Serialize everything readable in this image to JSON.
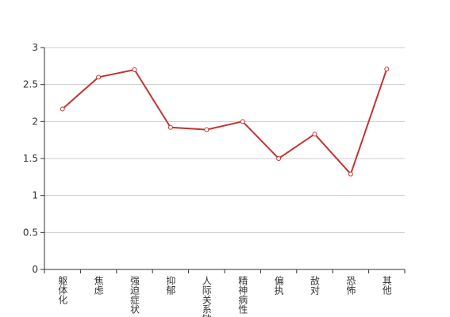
{
  "chart_data": {
    "type": "line",
    "categories": [
      "躯体化",
      "焦虑",
      "强迫症状",
      "抑郁",
      "人际关系敏感",
      "精神病性",
      "偏执",
      "敌对",
      "恐怖",
      "其他"
    ],
    "series": [
      {
        "color": "#c23531",
        "values": [
          2.17,
          2.6,
          2.7,
          1.92,
          1.89,
          2.0,
          1.5,
          1.83,
          1.29,
          2.71
        ]
      }
    ],
    "ylim": [
      0,
      3
    ],
    "yticks": [
      0,
      0.5,
      1,
      1.5,
      2,
      2.5,
      3
    ],
    "grid": true
  }
}
